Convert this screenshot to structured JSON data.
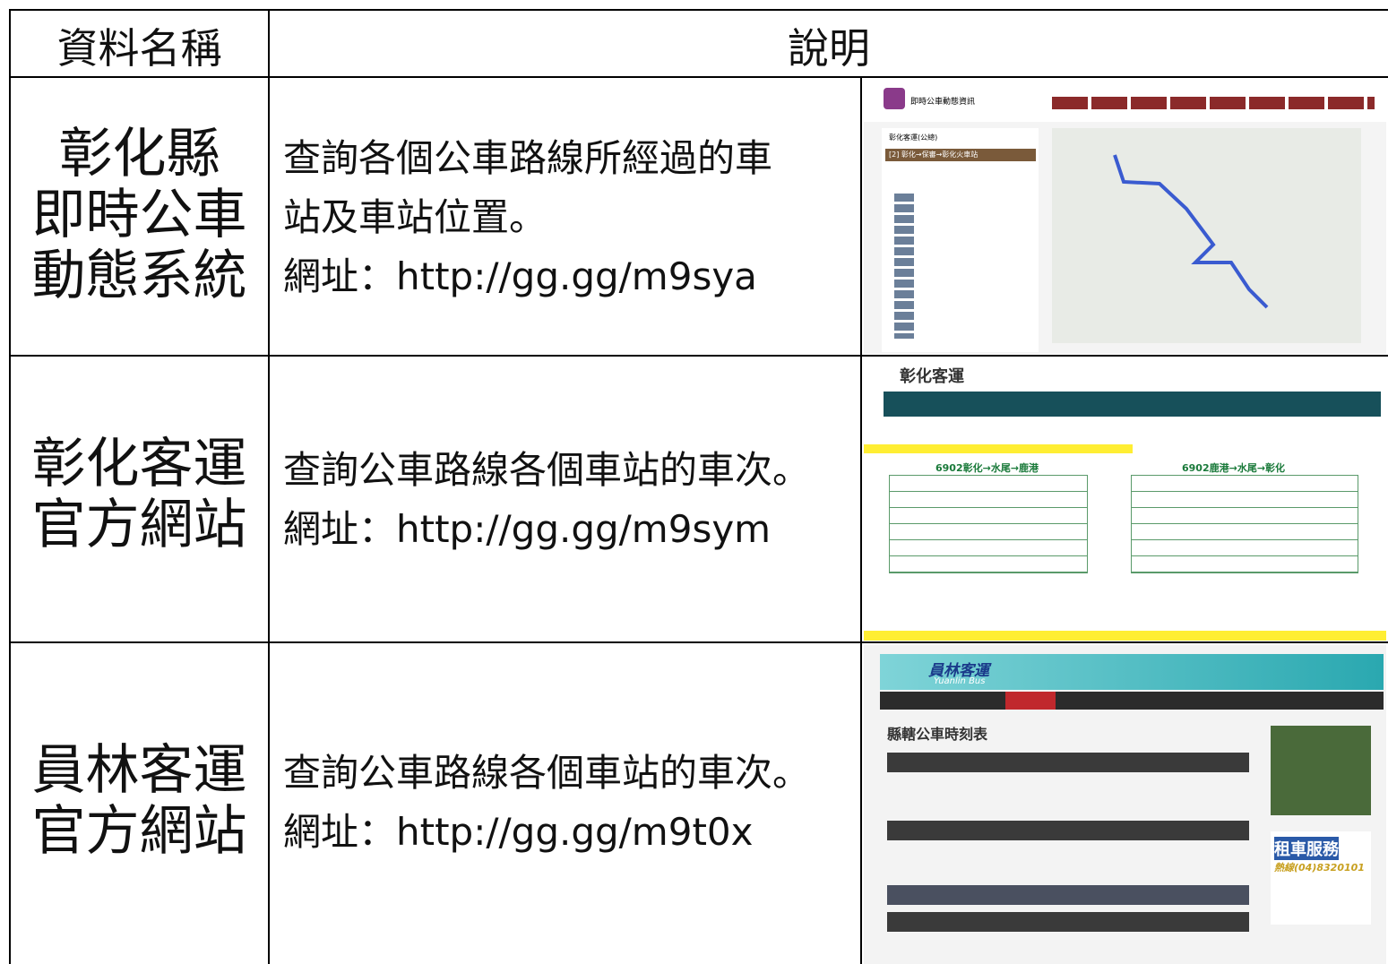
{
  "table": {
    "header": [
      "資料名稱",
      "說明"
    ],
    "rows": [
      {
        "name": [
          "彰化縣",
          "即時公車",
          "動態系統"
        ],
        "description": [
          "查詢各個公車路線所經過的車",
          "站及車站位置。",
          "網址：http://gg.gg/m9sya"
        ],
        "screenshot": {
          "site": "即時公車動態資訊",
          "menu": "彰化客運(公總)",
          "route": "[2] 彰化→保審→彰化火車站"
        }
      },
      {
        "name": [
          "彰化客運",
          "官方網站"
        ],
        "description": [
          "查詢公車路線各個車站的車次。",
          "網址：http://gg.gg/m9sym"
        ],
        "screenshot": {
          "site": "彰化客運",
          "left_table": "6902彰化→水尾→鹿港",
          "right_table": "6902鹿港→水尾→彰化"
        }
      },
      {
        "name": [
          "員林客運",
          "官方網站"
        ],
        "description": [
          "查詢公車路線各個車站的車次。",
          "網址：http://gg.gg/m9t0x"
        ],
        "screenshot": {
          "site": "員林客運",
          "site_en": "Yuanlin Bus",
          "page_title": "縣轄公車時刻表",
          "ad": "租車服務",
          "hotline": "熱線(04)8320101"
        }
      }
    ]
  }
}
